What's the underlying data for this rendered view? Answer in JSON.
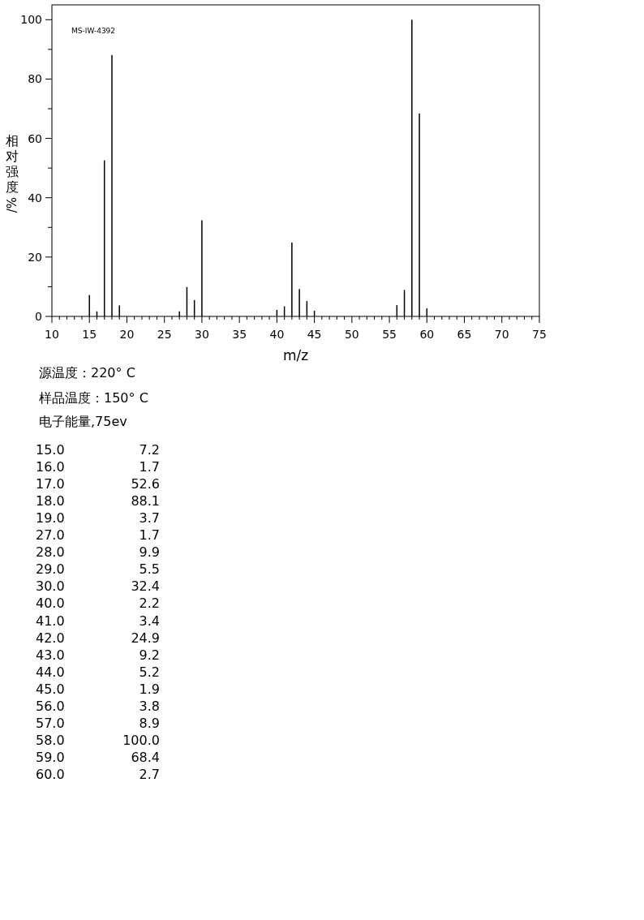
{
  "chart_data": {
    "type": "bar",
    "xlabel": "m/z",
    "ylabel": "相对强度/%",
    "x": [
      15,
      16,
      17,
      18,
      19,
      27,
      28,
      29,
      30,
      40,
      41,
      42,
      43,
      44,
      45,
      56,
      57,
      58,
      59,
      60
    ],
    "values": [
      7.2,
      1.7,
      52.6,
      88.1,
      3.7,
      1.7,
      9.9,
      5.5,
      32.4,
      2.2,
      3.4,
      24.9,
      9.2,
      5.2,
      1.9,
      3.8,
      8.9,
      100.0,
      68.4,
      2.7
    ],
    "color": "#000000",
    "xlim": [
      10,
      75
    ],
    "xticks": [
      10,
      {
        "value": 11,
        "label": null
      },
      {
        "value": 12,
        "label": null
      },
      {
        "value": 13,
        "label": null
      },
      {
        "value": 14,
        "label": null
      },
      15,
      {
        "value": 16,
        "label": null
      },
      {
        "value": 17,
        "label": null
      },
      {
        "value": 18,
        "label": null
      },
      {
        "value": 19,
        "label": null
      },
      20,
      {
        "value": 21,
        "label": null
      },
      {
        "value": 22,
        "label": null
      },
      {
        "value": 23,
        "label": null
      },
      {
        "value": 24,
        "label": null
      },
      25,
      {
        "value": 26,
        "label": null
      },
      {
        "value": 27,
        "label": null
      },
      {
        "value": 28,
        "label": null
      },
      {
        "value": 29,
        "label": null
      },
      30,
      {
        "value": 31,
        "label": null
      },
      {
        "value": 32,
        "label": null
      },
      {
        "value": 33,
        "label": null
      },
      {
        "value": 34,
        "label": null
      },
      35,
      {
        "value": 36,
        "label": null
      },
      {
        "value": 37,
        "label": null
      },
      {
        "value": 38,
        "label": null
      },
      {
        "value": 39,
        "label": null
      },
      40,
      {
        "value": 41,
        "label": null
      },
      {
        "value": 42,
        "label": null
      },
      {
        "value": 43,
        "label": null
      },
      {
        "value": 44,
        "label": null
      },
      45,
      {
        "value": 46,
        "label": null
      },
      {
        "value": 47,
        "label": null
      },
      {
        "value": 48,
        "label": null
      },
      {
        "value": 49,
        "label": null
      },
      50,
      {
        "value": 51,
        "label": null
      },
      {
        "value": 52,
        "label": null
      },
      {
        "value": 53,
        "label": null
      },
      {
        "value": 54,
        "label": null
      },
      55,
      {
        "value": 56,
        "label": null
      },
      {
        "value": 57,
        "label": null
      },
      {
        "value": 58,
        "label": null
      },
      {
        "value": 59,
        "label": null
      },
      60,
      {
        "value": 61,
        "label": null
      },
      {
        "value": 62,
        "label": null
      },
      {
        "value": 63,
        "label": null
      },
      {
        "value": 64,
        "label": null
      },
      65,
      {
        "value": 66,
        "label": null
      },
      {
        "value": 67,
        "label": null
      },
      {
        "value": 68,
        "label": null
      },
      {
        "value": 69,
        "label": null
      },
      70,
      {
        "value": 71,
        "label": null
      },
      {
        "value": 72,
        "label": null
      },
      {
        "value": 73,
        "label": null
      },
      {
        "value": 74,
        "label": null
      },
      75
    ],
    "ylim": [
      0,
      105
    ],
    "yticks": [
      0,
      {
        "value": 10,
        "label": null
      },
      20,
      {
        "value": 30,
        "label": null
      },
      40,
      {
        "value": 50,
        "label": null
      },
      60,
      {
        "value": 70,
        "label": null
      },
      80,
      {
        "value": 90,
        "label": null
      },
      100
    ],
    "grid": false,
    "annotations": [
      "MS-IW-4392",
      "源温度：220° C",
      "样品温度：150° C",
      "电子能量,75ev",
      "15.0",
      "16.0",
      "17.0",
      "18.0",
      "19.0",
      "27.0",
      "28.0",
      "29.0",
      "30.0",
      "40.0",
      "41.0",
      "42.0",
      "43.0",
      "44.0",
      "45.0",
      "56.0",
      "57.0",
      "58.0",
      "59.0",
      "60.0",
      "7.2",
      "1.7",
      "52.6",
      "88.1",
      "3.7",
      "1.7",
      "9.9",
      "5.5",
      "32.4",
      "2.2",
      "3.4",
      "24.9",
      "9.2",
      "5.2",
      "1.9",
      "3.8",
      "8.9",
      "100.0",
      "68.4",
      "2.7"
    ]
  }
}
